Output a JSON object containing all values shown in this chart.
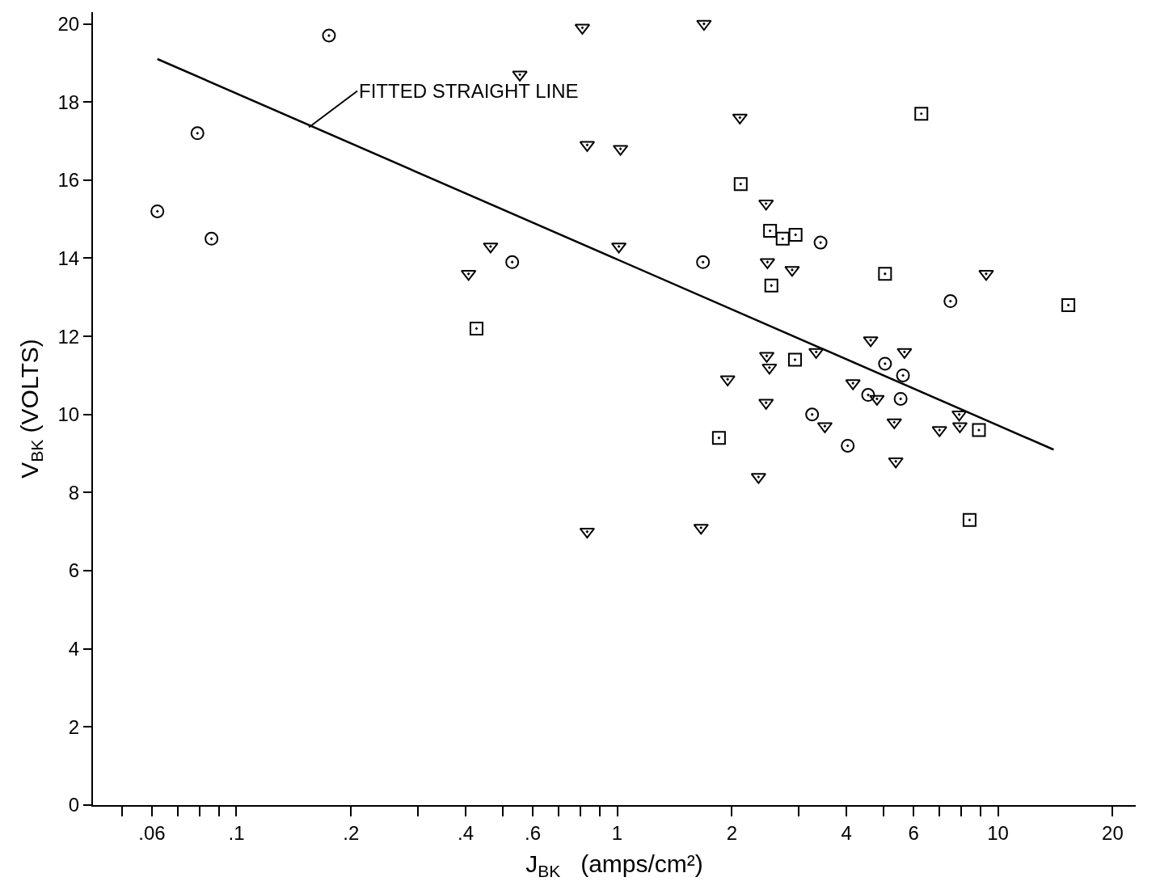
{
  "chart_data": {
    "type": "scatter",
    "xlabel": "J$_{BK}$   (amps/cm²)",
    "ylabel": "V$_{BK}$ (VOLTS)",
    "log": "x",
    "grid": false,
    "xlim": [
      0.042,
      23
    ],
    "ylim": [
      0,
      20.3
    ],
    "xticks": [
      {
        "value": 0.05,
        "label": null
      },
      {
        "value": 0.06,
        "label": ".06"
      },
      {
        "value": 0.07,
        "label": null
      },
      {
        "value": 0.08,
        "label": null
      },
      {
        "value": 0.09,
        "label": null
      },
      {
        "value": 0.1,
        "label": ".1"
      },
      {
        "value": 0.2,
        "label": ".2"
      },
      {
        "value": 0.3,
        "label": null
      },
      {
        "value": 0.4,
        "label": ".4"
      },
      {
        "value": 0.5,
        "label": null
      },
      {
        "value": 0.6,
        "label": ".6"
      },
      {
        "value": 0.7,
        "label": null
      },
      {
        "value": 0.8,
        "label": null
      },
      {
        "value": 0.9,
        "label": null
      },
      1,
      2,
      {
        "value": 3,
        "label": null
      },
      4,
      {
        "value": 5,
        "label": null
      },
      6,
      {
        "value": 7,
        "label": null
      },
      {
        "value": 8,
        "label": null
      },
      {
        "value": 9,
        "label": null
      },
      10,
      20
    ],
    "yticks": [
      0,
      2,
      4,
      6,
      8,
      10,
      12,
      14,
      16,
      18,
      20
    ],
    "series": [
      {
        "marker": "circle",
        "color": "#000000",
        "x": [
          0.062,
          0.079,
          0.086,
          0.175,
          0.53,
          1.68,
          3.42,
          7.5,
          5.05,
          5.63,
          4.56,
          5.55,
          3.25,
          4.03
        ],
        "values": [
          15.2,
          17.2,
          14.5,
          19.7,
          13.9,
          13.9,
          14.4,
          12.9,
          11.3,
          11.0,
          10.5,
          10.4,
          10.0,
          9.2
        ]
      },
      {
        "marker": "triangle",
        "color": "#000000",
        "x": [
          0.81,
          1.69,
          0.555,
          2.1,
          0.834,
          1.02,
          2.46,
          0.465,
          0.407,
          1.01,
          2.48,
          2.88,
          9.31,
          3.33,
          4.63,
          5.68,
          2.47,
          2.51,
          1.95,
          4.16,
          4.81,
          2.46,
          3.51,
          5.34,
          7.02,
          7.94,
          7.91,
          5.39,
          2.35,
          0.834,
          1.66
        ],
        "values": [
          19.9,
          20.0,
          18.7,
          17.6,
          16.9,
          16.8,
          15.4,
          14.3,
          13.6,
          14.3,
          13.9,
          13.7,
          13.6,
          11.6,
          11.9,
          11.6,
          11.5,
          11.2,
          10.9,
          10.8,
          10.4,
          10.3,
          9.7,
          9.8,
          9.6,
          9.7,
          10.0,
          8.8,
          8.4,
          7.0,
          7.1
        ]
      },
      {
        "marker": "square",
        "color": "#000000",
        "x": [
          6.29,
          2.11,
          2.52,
          2.72,
          2.94,
          2.54,
          5.05,
          15.3,
          0.427,
          2.93,
          1.85,
          8.91,
          8.42
        ],
        "values": [
          17.7,
          15.9,
          14.7,
          14.5,
          14.6,
          13.3,
          13.6,
          12.8,
          12.2,
          11.4,
          9.4,
          9.6,
          7.3
        ]
      },
      {
        "type": "line",
        "marker": "none",
        "line_style": "solid",
        "color": "#000000",
        "x": [
          0.062,
          14.0
        ],
        "values": [
          19.1,
          9.1
        ]
      }
    ],
    "annotations": [
      {
        "text": "FITTED STRAIGHT LINE",
        "x": 0.155,
        "y": 17.35
      }
    ]
  }
}
